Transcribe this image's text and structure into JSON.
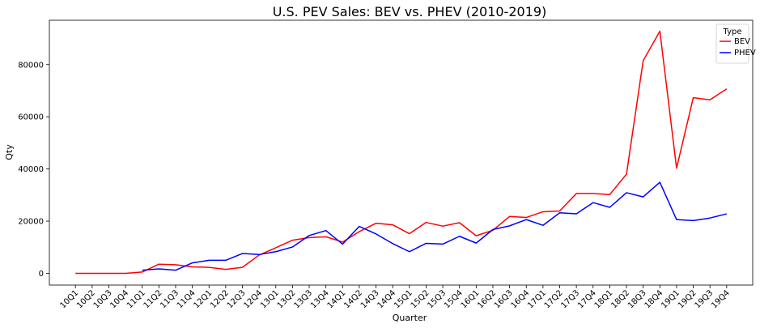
{
  "chart_data": {
    "type": "line",
    "title": "U.S. PEV Sales: BEV vs. PHEV (2010-2019)",
    "xlabel": "Quarter",
    "ylabel": "Qty",
    "ylim": [
      -4500,
      97000
    ],
    "yticks": [
      0,
      20000,
      40000,
      60000,
      80000
    ],
    "grid": false,
    "legend": {
      "title": "Type",
      "placement": "top-right"
    },
    "categories": [
      "10Q1",
      "10Q2",
      "10Q3",
      "10Q4",
      "11Q1",
      "11Q2",
      "11Q3",
      "11Q4",
      "12Q1",
      "12Q2",
      "12Q3",
      "12Q4",
      "13Q1",
      "13Q2",
      "13Q3",
      "13Q4",
      "14Q1",
      "14Q2",
      "14Q3",
      "14Q4",
      "15Q1",
      "15Q2",
      "15Q3",
      "15Q4",
      "16Q1",
      "16Q2",
      "16Q3",
      "16Q4",
      "17Q1",
      "17Q2",
      "17Q3",
      "17Q4",
      "18Q1",
      "18Q2",
      "18Q3",
      "18Q4",
      "19Q1",
      "19Q2",
      "19Q3",
      "19Q4"
    ],
    "series": [
      {
        "name": "BEV",
        "color": "#ff0000",
        "values": [
          0,
          0,
          0,
          0,
          500,
          3500,
          3300,
          2500,
          2300,
          1500,
          2300,
          7000,
          9800,
          12700,
          13700,
          14000,
          12000,
          16000,
          19200,
          18600,
          15200,
          19500,
          18100,
          19400,
          14400,
          16500,
          21800,
          21400,
          23600,
          23900,
          30600,
          30600,
          30200,
          38000,
          81500,
          92800,
          40300,
          67300,
          66500,
          70700
        ]
      },
      {
        "name": "PHEV",
        "color": "#0000ff",
        "values": [
          null,
          null,
          null,
          null,
          1200,
          1700,
          1200,
          4000,
          5000,
          5000,
          7600,
          7200,
          8300,
          10100,
          14500,
          16400,
          11200,
          18000,
          15100,
          11400,
          8300,
          11500,
          11200,
          14200,
          11600,
          16800,
          18200,
          20600,
          18400,
          23200,
          22800,
          27100,
          25300,
          30900,
          29300,
          34900,
          20600,
          20200,
          21200,
          22800
        ]
      }
    ]
  }
}
